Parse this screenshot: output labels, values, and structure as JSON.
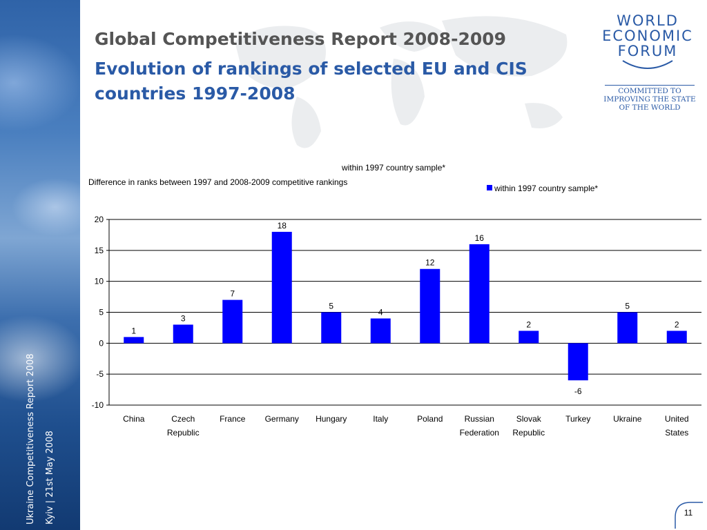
{
  "slide": {
    "title_line1": "Global Competitiveness Report 2008-2009",
    "title_line2": "Evolution of rankings of selected EU and CIS countries 1997-2008",
    "side_text_1": "Ukraine Competitiveness Report 2008",
    "side_text_2": "Kyiv | 21st May 2008",
    "page_number": "11"
  },
  "logo": {
    "word1": "WORLD",
    "word2": "ECONOMIC",
    "word3": "FORUM",
    "tagline": [
      "COMMITTED TO",
      "IMPROVING THE STATE",
      "OF THE WORLD"
    ],
    "color": "#2a5aa6"
  },
  "chart_data": {
    "type": "bar",
    "title": "within 1997 country sample*",
    "subtitle": "Difference in ranks between 1997 and 2008-2009 competitive rankings",
    "categories": [
      [
        "China"
      ],
      [
        "Czech",
        "Republic"
      ],
      [
        "France"
      ],
      [
        "Germany"
      ],
      [
        "Hungary"
      ],
      [
        "Italy"
      ],
      [
        "Poland"
      ],
      [
        "Russian",
        "Federation"
      ],
      [
        "Slovak",
        "Republic"
      ],
      [
        "Turkey"
      ],
      [
        "Ukraine"
      ],
      [
        "United",
        "States"
      ]
    ],
    "series": [
      {
        "name": "within 1997 country sample*",
        "values": [
          1,
          3,
          7,
          18,
          5,
          4,
          12,
          16,
          2,
          -6,
          5,
          2
        ],
        "color": "#0000ff"
      }
    ],
    "ylim": [
      -10,
      20
    ],
    "yticks": [
      -10,
      -5,
      0,
      5,
      10,
      15,
      20
    ],
    "grid": true,
    "legend": "top-right"
  }
}
